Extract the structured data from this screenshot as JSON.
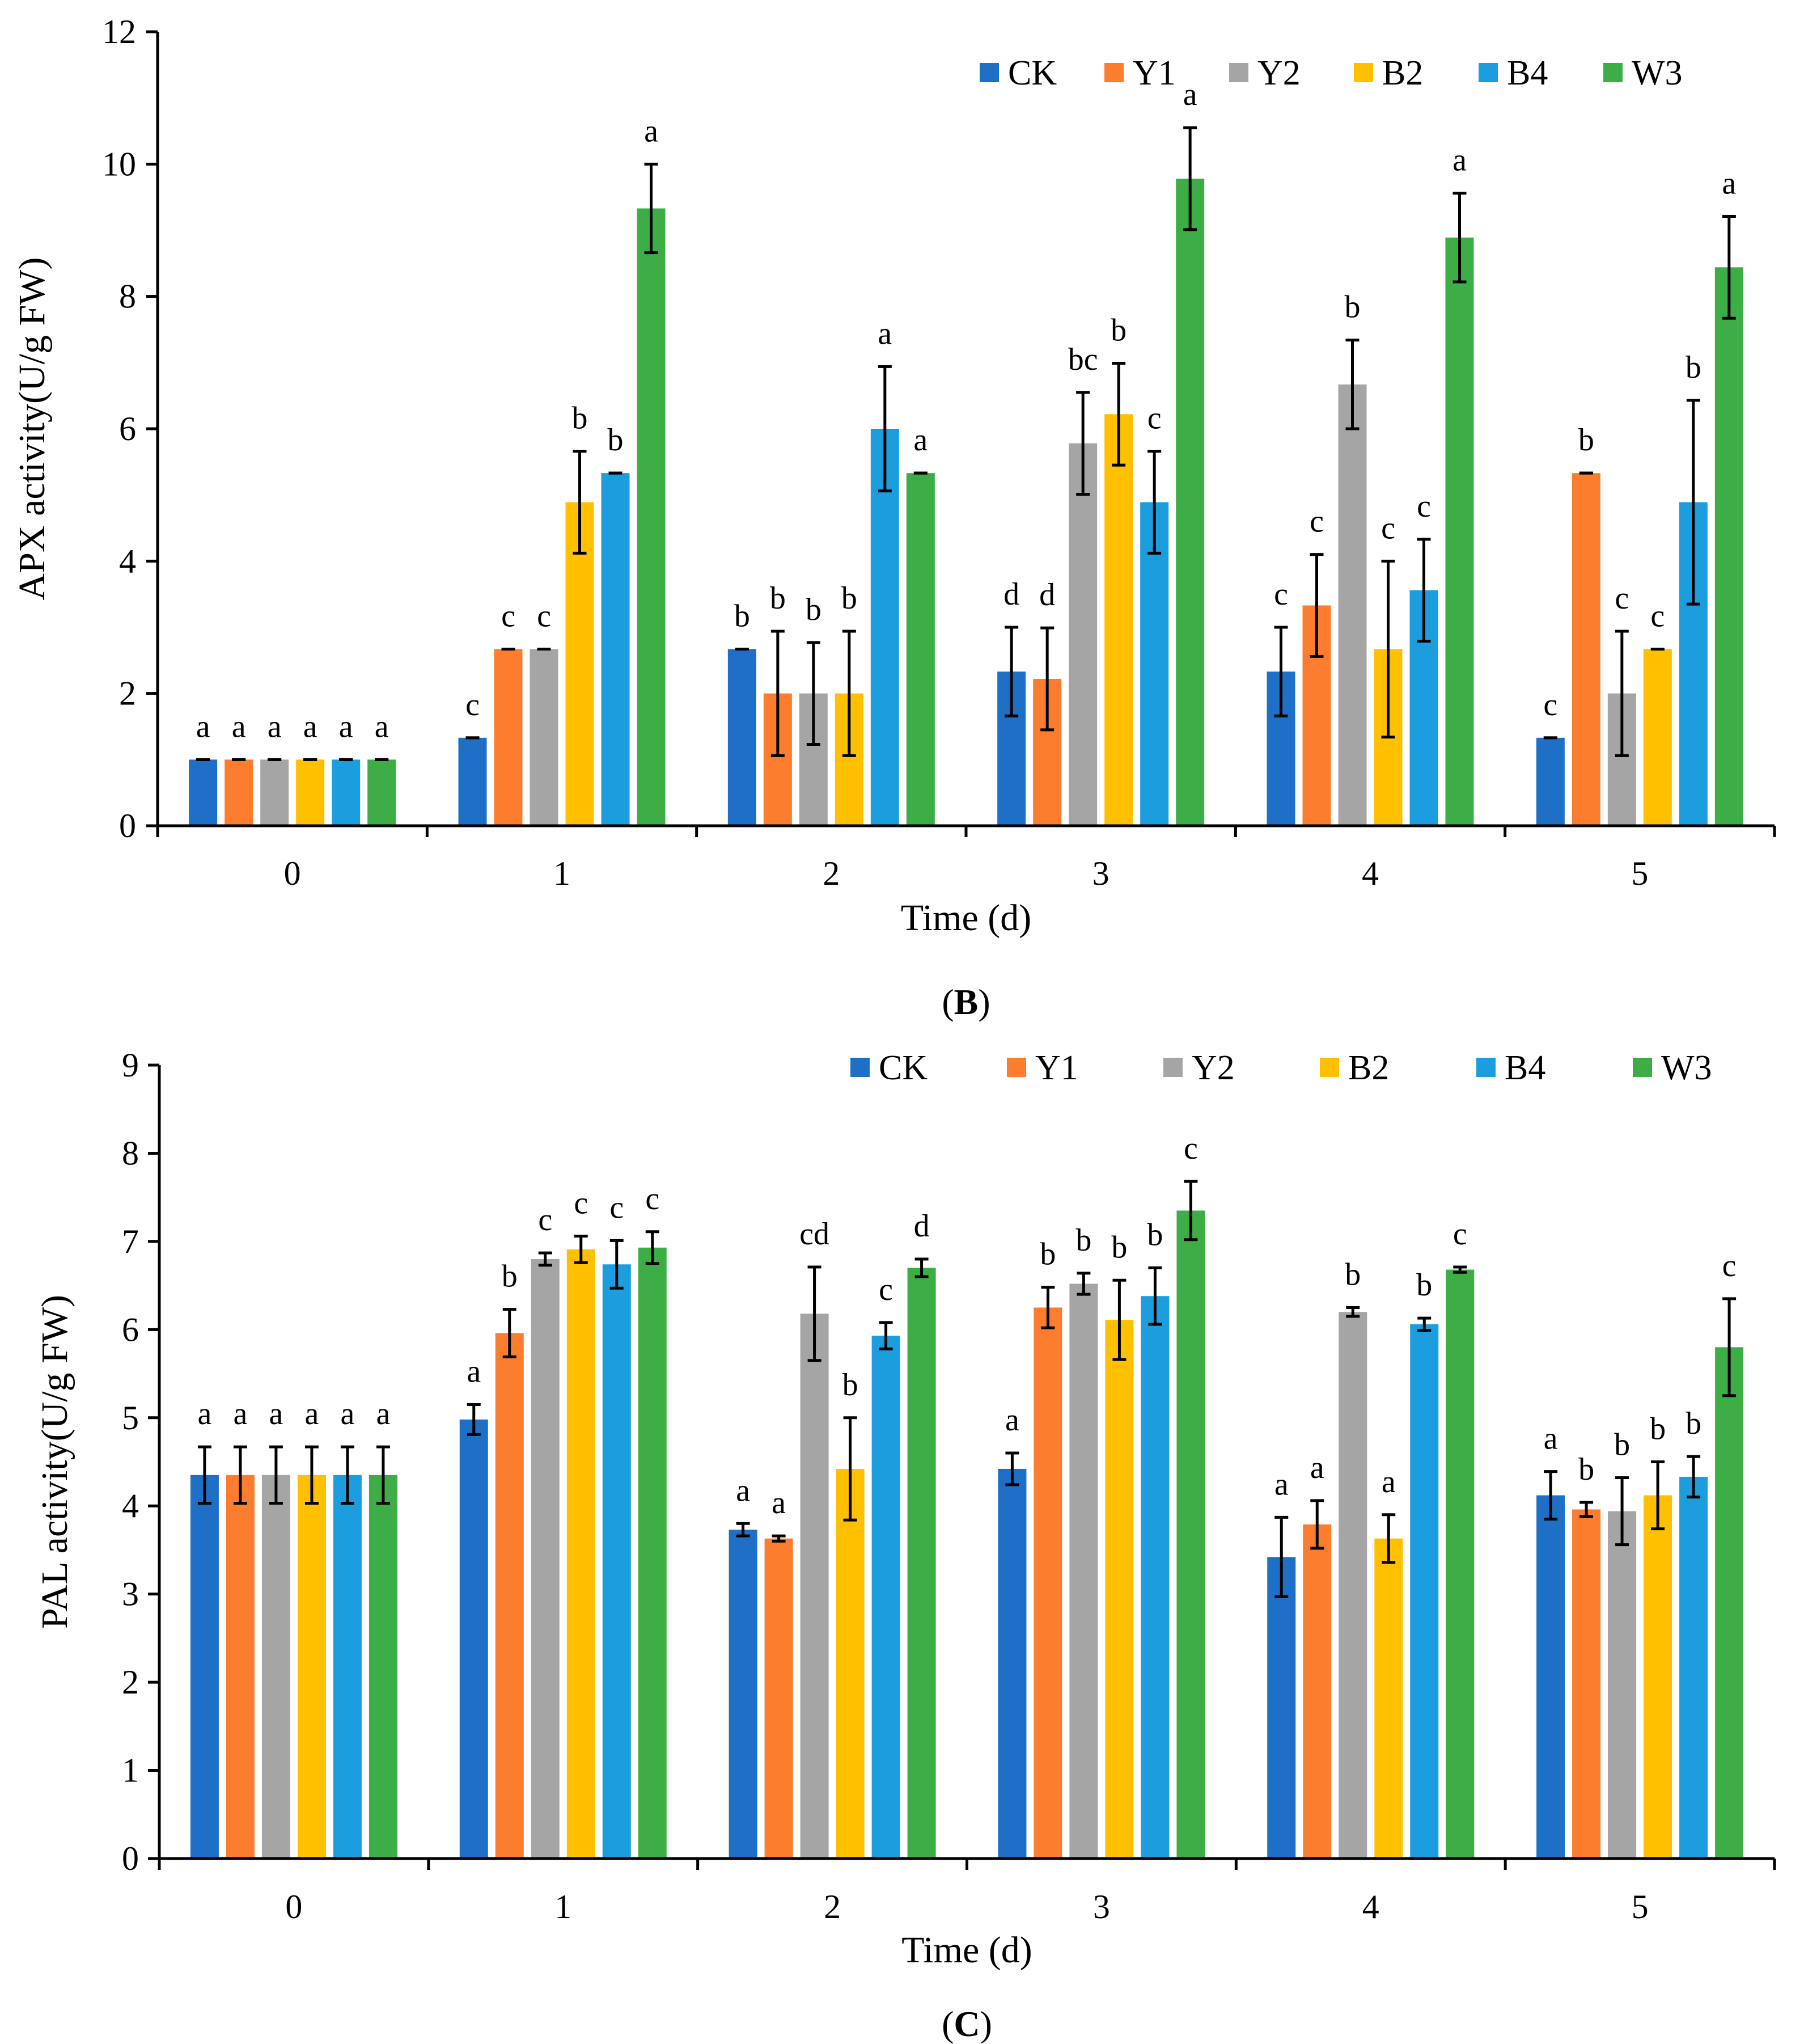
{
  "chart_data": [
    {
      "id": "apx",
      "type": "bar",
      "panel_label": "B",
      "xlabel": "Time (d)",
      "ylabel": "APX activity(U/g FW)",
      "categories": [
        "0",
        "1",
        "2",
        "3",
        "4",
        "5"
      ],
      "ylim": [
        0,
        12
      ],
      "yticks": [
        0,
        2,
        4,
        6,
        8,
        10,
        12
      ],
      "grid": false,
      "legend_position": "top-right",
      "series": [
        {
          "name": "CK",
          "color": "#1E6FC6",
          "values": [
            1.0,
            1.33,
            2.67,
            2.33,
            2.33,
            1.33
          ],
          "errors": [
            0.0,
            0.0,
            0.0,
            0.67,
            0.67,
            0.0
          ],
          "labels": [
            "a",
            "c",
            "b",
            "d",
            "c",
            "c"
          ]
        },
        {
          "name": "Y1",
          "color": "#FB7D2D",
          "values": [
            1.0,
            2.67,
            2.0,
            2.22,
            3.33,
            5.33
          ],
          "errors": [
            0.0,
            0.0,
            0.94,
            0.77,
            0.77,
            0.0
          ],
          "labels": [
            "a",
            "c",
            "b",
            "d",
            "c",
            "b"
          ]
        },
        {
          "name": "Y2",
          "color": "#A5A5A5",
          "values": [
            1.0,
            2.67,
            2.0,
            5.78,
            6.67,
            2.0
          ],
          "errors": [
            0.0,
            0.0,
            0.77,
            0.77,
            0.67,
            0.94
          ],
          "labels": [
            "a",
            "c",
            "b",
            "bc",
            "b",
            "c"
          ]
        },
        {
          "name": "B2",
          "color": "#FFC000",
          "values": [
            1.0,
            4.89,
            2.0,
            6.22,
            2.67,
            2.67
          ],
          "errors": [
            0.0,
            0.77,
            0.94,
            0.77,
            1.33,
            0.0
          ],
          "labels": [
            "a",
            "b",
            "b",
            "b",
            "c",
            "c"
          ]
        },
        {
          "name": "B4",
          "color": "#1B9DDE",
          "values": [
            1.0,
            5.33,
            6.0,
            4.89,
            3.56,
            4.89
          ],
          "errors": [
            0.0,
            0.0,
            0.94,
            0.77,
            0.77,
            1.54
          ],
          "labels": [
            "a",
            "b",
            "a",
            "c",
            "c",
            "b"
          ]
        },
        {
          "name": "W3",
          "color": "#3DAE45",
          "values": [
            1.0,
            9.33,
            5.33,
            9.78,
            8.89,
            8.44
          ],
          "errors": [
            0.0,
            0.67,
            0.0,
            0.77,
            0.67,
            0.77
          ],
          "labels": [
            "a",
            "a",
            "a",
            "a",
            "a",
            "a"
          ]
        }
      ]
    },
    {
      "id": "pal",
      "type": "bar",
      "panel_label": "C",
      "xlabel": "Time (d)",
      "ylabel": "PAL activity(U/g FW)",
      "categories": [
        "0",
        "1",
        "2",
        "3",
        "4",
        "5"
      ],
      "ylim": [
        0,
        9
      ],
      "yticks": [
        0,
        1,
        2,
        3,
        4,
        5,
        6,
        7,
        8,
        9
      ],
      "grid": false,
      "legend_position": "top-right",
      "series": [
        {
          "name": "CK",
          "color": "#1E6FC6",
          "values": [
            4.35,
            4.98,
            3.73,
            4.42,
            3.42,
            4.12
          ],
          "errors": [
            0.32,
            0.17,
            0.07,
            0.18,
            0.45,
            0.27
          ],
          "labels": [
            "a",
            "a",
            "a",
            "a",
            "a",
            "a"
          ]
        },
        {
          "name": "Y1",
          "color": "#FB7D2D",
          "values": [
            4.35,
            5.96,
            3.63,
            6.25,
            3.79,
            3.96
          ],
          "errors": [
            0.32,
            0.27,
            0.03,
            0.23,
            0.27,
            0.08
          ],
          "labels": [
            "a",
            "b",
            "a",
            "b",
            "a",
            "b"
          ]
        },
        {
          "name": "Y2",
          "color": "#A5A5A5",
          "values": [
            4.35,
            6.8,
            6.18,
            6.52,
            6.2,
            3.94
          ],
          "errors": [
            0.32,
            0.07,
            0.53,
            0.12,
            0.05,
            0.38
          ],
          "labels": [
            "a",
            "c",
            "cd",
            "b",
            "b",
            "b"
          ]
        },
        {
          "name": "B2",
          "color": "#FFC000",
          "values": [
            4.35,
            6.91,
            4.42,
            6.11,
            3.63,
            4.12
          ],
          "errors": [
            0.32,
            0.15,
            0.58,
            0.45,
            0.27,
            0.38
          ],
          "labels": [
            "a",
            "c",
            "b",
            "b",
            "a",
            "b"
          ]
        },
        {
          "name": "B4",
          "color": "#1B9DDE",
          "values": [
            4.35,
            6.74,
            5.93,
            6.38,
            6.06,
            4.33
          ],
          "errors": [
            0.32,
            0.27,
            0.15,
            0.32,
            0.07,
            0.23
          ],
          "labels": [
            "a",
            "c",
            "c",
            "b",
            "b",
            "b"
          ]
        },
        {
          "name": "W3",
          "color": "#3DAE45",
          "values": [
            4.35,
            6.93,
            6.7,
            7.35,
            6.68,
            5.8
          ],
          "errors": [
            0.32,
            0.18,
            0.1,
            0.33,
            0.03,
            0.55
          ],
          "labels": [
            "a",
            "c",
            "d",
            "c",
            "c",
            "c"
          ]
        }
      ]
    }
  ]
}
